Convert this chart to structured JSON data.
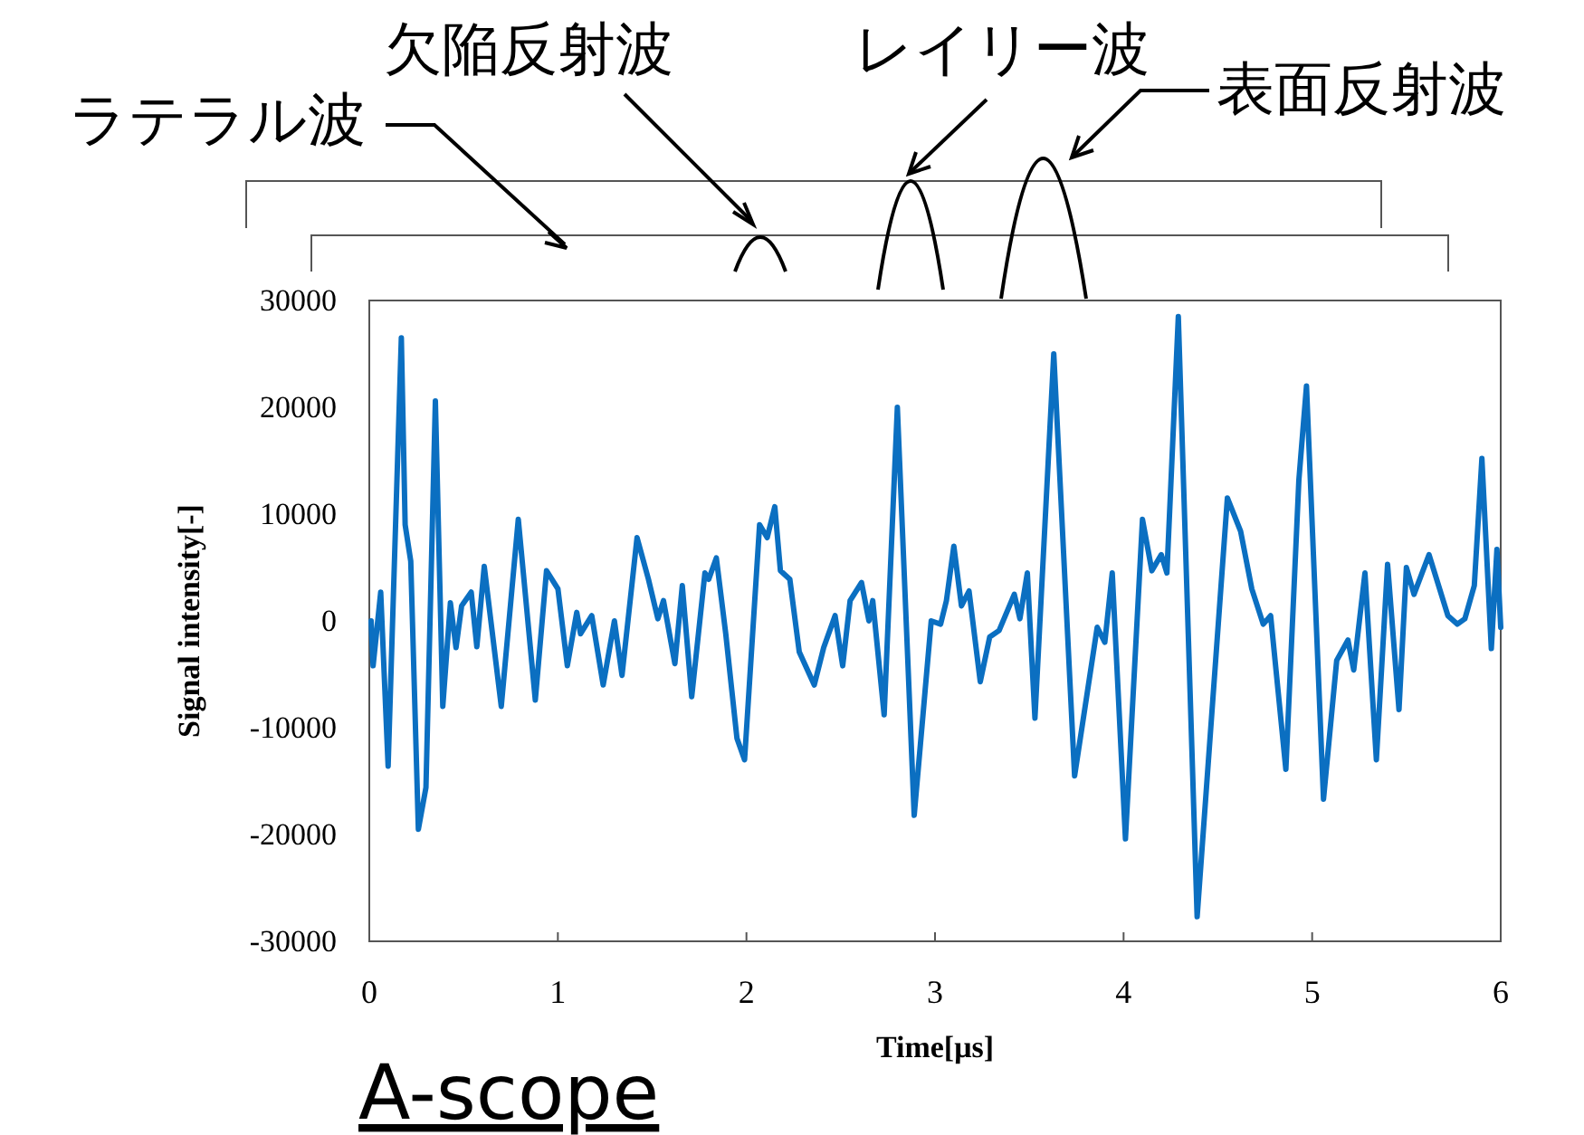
{
  "chart_data": {
    "type": "line",
    "xlabel": "Time[μs]",
    "ylabel": "Signal intensity[-]",
    "annotations": [
      "ラテラル波",
      "欠陥反射波",
      "レイリー波",
      "表面反射波",
      "A-scope"
    ],
    "xlim": [
      0,
      6
    ],
    "ylim": [
      -30000,
      30000
    ],
    "xticks": [
      0,
      1,
      2,
      3,
      4,
      5,
      6
    ],
    "yticks": [
      -30000,
      -20000,
      -10000,
      0,
      10000,
      20000,
      30000
    ],
    "x": [
      0.01,
      0.02,
      0.06,
      0.1,
      0.17,
      0.19,
      0.22,
      0.26,
      0.3,
      0.35,
      0.39,
      0.43,
      0.46,
      0.49,
      0.54,
      0.57,
      0.61,
      0.7,
      0.79,
      0.88,
      0.94,
      1.0,
      1.05,
      1.1,
      1.12,
      1.18,
      1.24,
      1.3,
      1.34,
      1.42,
      1.48,
      1.53,
      1.56,
      1.62,
      1.66,
      1.71,
      1.78,
      1.8,
      1.84,
      1.89,
      1.95,
      1.99,
      2.07,
      2.11,
      2.15,
      2.18,
      2.23,
      2.28,
      2.36,
      2.41,
      2.47,
      2.51,
      2.55,
      2.61,
      2.65,
      2.67,
      2.73,
      2.8,
      2.89,
      2.98,
      3.03,
      3.06,
      3.1,
      3.14,
      3.18,
      3.24,
      3.29,
      3.34,
      3.42,
      3.45,
      3.49,
      3.53,
      3.63,
      3.74,
      3.86,
      3.9,
      3.94,
      4.01,
      4.1,
      4.15,
      4.2,
      4.23,
      4.29,
      4.39,
      4.55,
      4.62,
      4.68,
      4.74,
      4.78,
      4.86,
      4.93,
      4.97,
      5.06,
      5.13,
      5.19,
      5.22,
      5.28,
      5.34,
      5.4,
      5.46,
      5.5,
      5.54,
      5.62,
      5.72,
      5.77,
      5.81,
      5.86,
      5.9,
      5.95,
      5.98,
      6.0
    ],
    "series": [
      {
        "color": "#0b6fc1",
        "values": [
          0,
          -4200,
          2700,
          -13600,
          26500,
          9000,
          5600,
          -19500,
          -15600,
          20600,
          -8000,
          1700,
          -2500,
          1400,
          2700,
          -2400,
          5100,
          -8000,
          9500,
          -7400,
          4700,
          3000,
          -4200,
          800,
          -1200,
          500,
          -6000,
          0,
          -5100,
          7800,
          3900,
          200,
          1900,
          -4000,
          3300,
          -7100,
          4500,
          3900,
          5900,
          -1200,
          -11000,
          -13000,
          9000,
          7800,
          10700,
          4700,
          3900,
          -2900,
          -6000,
          -2500,
          500,
          -4200,
          1900,
          3600,
          0,
          1900,
          -8800,
          20000,
          -18200,
          0,
          -300,
          1900,
          7000,
          1400,
          2800,
          -5700,
          -1500,
          -900,
          2500,
          200,
          4500,
          -9100,
          25000,
          -14500,
          -600,
          -2000,
          4500,
          -20400,
          9500,
          4700,
          6200,
          4500,
          28500,
          -27700,
          11500,
          8400,
          3000,
          -300,
          500,
          -13900,
          13200,
          22000,
          -16700,
          -3700,
          -1800,
          -4600,
          4500,
          -13000,
          5300,
          -8300,
          5000,
          2500,
          6200,
          500,
          -300,
          200,
          3300,
          15200,
          -2600,
          6700,
          -600
        ]
      }
    ]
  }
}
